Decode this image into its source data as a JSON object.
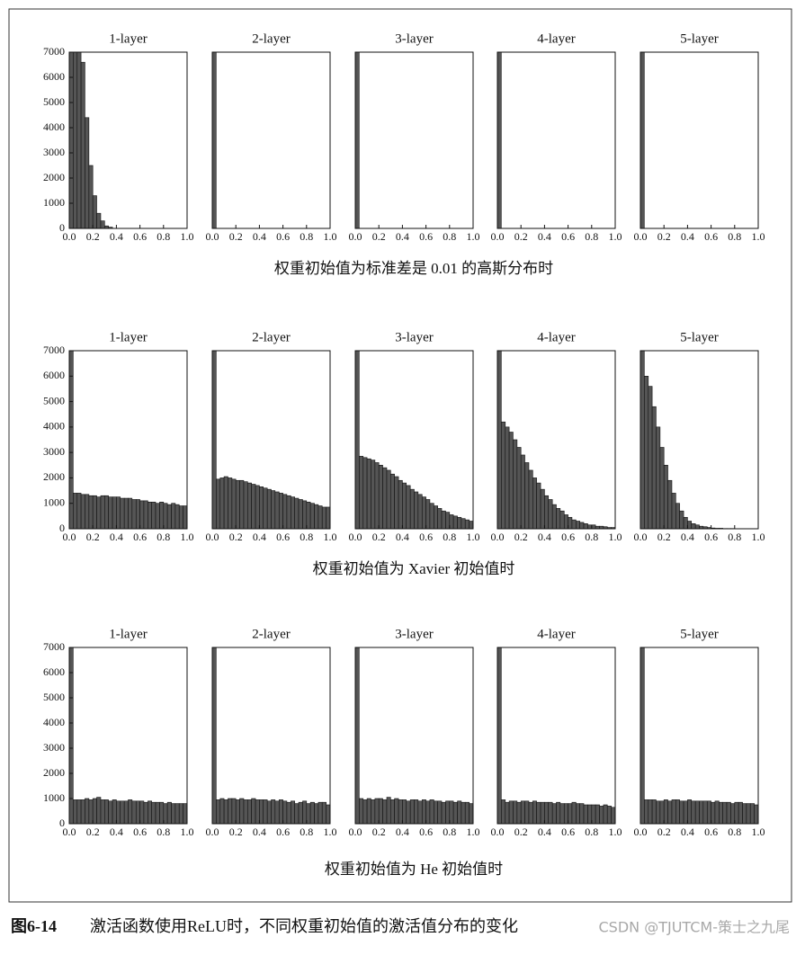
{
  "chart_data": [
    {
      "type": "histogram",
      "title": "1-layer",
      "bins": [
        0,
        0.033,
        0.067,
        0.1,
        0.133,
        0.167,
        0.2,
        0.233,
        0.267,
        0.3,
        0.333,
        0.367,
        0.4,
        0.433,
        0.467,
        0.5,
        0.533,
        0.567,
        0.6,
        0.633,
        0.667,
        0.7,
        0.733,
        0.767,
        0.8,
        0.833,
        0.867,
        0.9,
        0.933,
        0.967,
        1
      ],
      "values": [
        7000,
        7000,
        7000,
        6600,
        4400,
        2500,
        1300,
        600,
        300,
        100,
        50,
        0,
        0,
        0,
        0,
        0,
        0,
        0,
        0,
        0,
        0,
        0,
        0,
        0,
        0,
        0,
        0,
        0,
        0,
        0
      ],
      "color": "#555555",
      "xlim": [
        0,
        1
      ],
      "ylim": [
        0,
        7000
      ],
      "xticks": [
        {
          "value": 0,
          "label": "0.0"
        },
        0.2,
        0.4,
        0.6,
        0.8,
        {
          "value": 1,
          "label": "1.0"
        }
      ],
      "yticks": [
        0,
        1000,
        2000,
        3000,
        4000,
        5000,
        6000,
        7000
      ]
    },
    {
      "type": "histogram",
      "title": "2-layer",
      "bins": [
        0,
        0.033,
        0.067,
        0.1,
        0.133,
        0.167,
        0.2,
        0.233,
        0.267,
        0.3,
        0.333,
        0.367,
        0.4,
        0.433,
        0.467,
        0.5,
        0.533,
        0.567,
        0.6,
        0.633,
        0.667,
        0.7,
        0.733,
        0.767,
        0.8,
        0.833,
        0.867,
        0.9,
        0.933,
        0.967,
        1
      ],
      "values": [
        7000,
        0,
        0,
        0,
        0,
        0,
        0,
        0,
        0,
        0,
        0,
        0,
        0,
        0,
        0,
        0,
        0,
        0,
        0,
        0,
        0,
        0,
        0,
        0,
        0,
        0,
        0,
        0,
        0,
        0
      ],
      "color": "#555555",
      "xlim": [
        0,
        1
      ],
      "ylim": [
        0,
        7000
      ],
      "xticks": [
        {
          "value": 0,
          "label": "0.0"
        },
        0.2,
        0.4,
        0.6,
        0.8,
        {
          "value": 1,
          "label": "1.0"
        }
      ]
    },
    {
      "type": "histogram",
      "title": "3-layer",
      "bins": [
        0,
        0.033,
        0.067,
        0.1,
        0.133,
        0.167,
        0.2,
        0.233,
        0.267,
        0.3,
        0.333,
        0.367,
        0.4,
        0.433,
        0.467,
        0.5,
        0.533,
        0.567,
        0.6,
        0.633,
        0.667,
        0.7,
        0.733,
        0.767,
        0.8,
        0.833,
        0.867,
        0.9,
        0.933,
        0.967,
        1
      ],
      "values": [
        7000,
        0,
        0,
        0,
        0,
        0,
        0,
        0,
        0,
        0,
        0,
        0,
        0,
        0,
        0,
        0,
        0,
        0,
        0,
        0,
        0,
        0,
        0,
        0,
        0,
        0,
        0,
        0,
        0,
        0
      ],
      "color": "#555555",
      "xlim": [
        0,
        1
      ],
      "ylim": [
        0,
        7000
      ],
      "xticks": [
        {
          "value": 0,
          "label": "0.0"
        },
        0.2,
        0.4,
        0.6,
        0.8,
        {
          "value": 1,
          "label": "1.0"
        }
      ]
    },
    {
      "type": "histogram",
      "title": "4-layer",
      "bins": [
        0,
        0.033,
        0.067,
        0.1,
        0.133,
        0.167,
        0.2,
        0.233,
        0.267,
        0.3,
        0.333,
        0.367,
        0.4,
        0.433,
        0.467,
        0.5,
        0.533,
        0.567,
        0.6,
        0.633,
        0.667,
        0.7,
        0.733,
        0.767,
        0.8,
        0.833,
        0.867,
        0.9,
        0.933,
        0.967,
        1
      ],
      "values": [
        7000,
        0,
        0,
        0,
        0,
        0,
        0,
        0,
        0,
        0,
        0,
        0,
        0,
        0,
        0,
        0,
        0,
        0,
        0,
        0,
        0,
        0,
        0,
        0,
        0,
        0,
        0,
        0,
        0,
        0
      ],
      "color": "#555555",
      "xlim": [
        0,
        1
      ],
      "ylim": [
        0,
        7000
      ],
      "xticks": [
        {
          "value": 0,
          "label": "0.0"
        },
        0.2,
        0.4,
        0.6,
        0.8,
        {
          "value": 1,
          "label": "1.0"
        }
      ]
    },
    {
      "type": "histogram",
      "title": "5-layer",
      "bins": [
        0,
        0.033,
        0.067,
        0.1,
        0.133,
        0.167,
        0.2,
        0.233,
        0.267,
        0.3,
        0.333,
        0.367,
        0.4,
        0.433,
        0.467,
        0.5,
        0.533,
        0.567,
        0.6,
        0.633,
        0.667,
        0.7,
        0.733,
        0.767,
        0.8,
        0.833,
        0.867,
        0.9,
        0.933,
        0.967,
        1
      ],
      "values": [
        7000,
        0,
        0,
        0,
        0,
        0,
        0,
        0,
        0,
        0,
        0,
        0,
        0,
        0,
        0,
        0,
        0,
        0,
        0,
        0,
        0,
        0,
        0,
        0,
        0,
        0,
        0,
        0,
        0,
        0
      ],
      "color": "#555555",
      "xlim": [
        0,
        1
      ],
      "ylim": [
        0,
        7000
      ],
      "xticks": [
        {
          "value": 0,
          "label": "0.0"
        },
        0.2,
        0.4,
        0.6,
        0.8,
        {
          "value": 1,
          "label": "1.0"
        }
      ]
    },
    {
      "type": "histogram",
      "title": "1-layer",
      "bins": [
        0,
        0.033,
        0.067,
        0.1,
        0.133,
        0.167,
        0.2,
        0.233,
        0.267,
        0.3,
        0.333,
        0.367,
        0.4,
        0.433,
        0.467,
        0.5,
        0.533,
        0.567,
        0.6,
        0.633,
        0.667,
        0.7,
        0.733,
        0.767,
        0.8,
        0.833,
        0.867,
        0.9,
        0.933,
        0.967,
        1
      ],
      "values": [
        7000,
        1400,
        1400,
        1350,
        1350,
        1300,
        1300,
        1250,
        1300,
        1300,
        1250,
        1250,
        1250,
        1200,
        1200,
        1200,
        1150,
        1150,
        1100,
        1100,
        1050,
        1050,
        1000,
        1050,
        1000,
        950,
        1000,
        950,
        900,
        900
      ],
      "color": "#555555",
      "xlim": [
        0,
        1
      ],
      "ylim": [
        0,
        7000
      ],
      "xticks": [
        {
          "value": 0,
          "label": "0.0"
        },
        0.2,
        0.4,
        0.6,
        0.8,
        {
          "value": 1,
          "label": "1.0"
        }
      ],
      "yticks": [
        0,
        1000,
        2000,
        3000,
        4000,
        5000,
        6000,
        7000
      ]
    },
    {
      "type": "histogram",
      "title": "2-layer",
      "bins": [
        0,
        0.033,
        0.067,
        0.1,
        0.133,
        0.167,
        0.2,
        0.233,
        0.267,
        0.3,
        0.333,
        0.367,
        0.4,
        0.433,
        0.467,
        0.5,
        0.533,
        0.567,
        0.6,
        0.633,
        0.667,
        0.7,
        0.733,
        0.767,
        0.8,
        0.833,
        0.867,
        0.9,
        0.933,
        0.967,
        1
      ],
      "values": [
        7000,
        1950,
        2000,
        2050,
        2000,
        1950,
        1900,
        1900,
        1850,
        1800,
        1750,
        1700,
        1650,
        1600,
        1550,
        1500,
        1450,
        1400,
        1350,
        1300,
        1250,
        1200,
        1150,
        1100,
        1050,
        1000,
        950,
        900,
        850,
        850
      ],
      "color": "#555555",
      "xlim": [
        0,
        1
      ],
      "ylim": [
        0,
        7000
      ],
      "xticks": [
        {
          "value": 0,
          "label": "0.0"
        },
        0.2,
        0.4,
        0.6,
        0.8,
        {
          "value": 1,
          "label": "1.0"
        }
      ]
    },
    {
      "type": "histogram",
      "title": "3-layer",
      "bins": [
        0,
        0.033,
        0.067,
        0.1,
        0.133,
        0.167,
        0.2,
        0.233,
        0.267,
        0.3,
        0.333,
        0.367,
        0.4,
        0.433,
        0.467,
        0.5,
        0.533,
        0.567,
        0.6,
        0.633,
        0.667,
        0.7,
        0.733,
        0.767,
        0.8,
        0.833,
        0.867,
        0.9,
        0.933,
        0.967,
        1
      ],
      "values": [
        7000,
        2850,
        2800,
        2750,
        2700,
        2600,
        2500,
        2400,
        2300,
        2150,
        2050,
        1900,
        1800,
        1700,
        1550,
        1450,
        1350,
        1250,
        1150,
        1000,
        900,
        800,
        700,
        650,
        550,
        500,
        450,
        400,
        350,
        300
      ],
      "color": "#555555",
      "xlim": [
        0,
        1
      ],
      "ylim": [
        0,
        7000
      ],
      "xticks": [
        {
          "value": 0,
          "label": "0.0"
        },
        0.2,
        0.4,
        0.6,
        0.8,
        {
          "value": 1,
          "label": "1.0"
        }
      ]
    },
    {
      "type": "histogram",
      "title": "4-layer",
      "bins": [
        0,
        0.033,
        0.067,
        0.1,
        0.133,
        0.167,
        0.2,
        0.233,
        0.267,
        0.3,
        0.333,
        0.367,
        0.4,
        0.433,
        0.467,
        0.5,
        0.533,
        0.567,
        0.6,
        0.633,
        0.667,
        0.7,
        0.733,
        0.767,
        0.8,
        0.833,
        0.867,
        0.9,
        0.933,
        0.967,
        1
      ],
      "values": [
        7000,
        4200,
        4000,
        3800,
        3500,
        3200,
        2900,
        2600,
        2300,
        2000,
        1800,
        1550,
        1300,
        1150,
        950,
        800,
        700,
        550,
        450,
        350,
        300,
        250,
        200,
        150,
        150,
        100,
        100,
        80,
        50,
        50
      ],
      "color": "#555555",
      "xlim": [
        0,
        1
      ],
      "ylim": [
        0,
        7000
      ],
      "xticks": [
        {
          "value": 0,
          "label": "0.0"
        },
        0.2,
        0.4,
        0.6,
        0.8,
        {
          "value": 1,
          "label": "1.0"
        }
      ]
    },
    {
      "type": "histogram",
      "title": "5-layer",
      "bins": [
        0,
        0.033,
        0.067,
        0.1,
        0.133,
        0.167,
        0.2,
        0.233,
        0.267,
        0.3,
        0.333,
        0.367,
        0.4,
        0.433,
        0.467,
        0.5,
        0.533,
        0.567,
        0.6,
        0.633,
        0.667,
        0.7,
        0.733,
        0.767,
        0.8,
        0.833,
        0.867,
        0.9,
        0.933,
        0.967,
        1
      ],
      "values": [
        7000,
        6000,
        5600,
        4800,
        4000,
        3200,
        2500,
        1900,
        1400,
        1000,
        700,
        450,
        300,
        200,
        150,
        100,
        80,
        50,
        30,
        20,
        20,
        10,
        10,
        10,
        5,
        5,
        5,
        0,
        0,
        0
      ],
      "color": "#555555",
      "xlim": [
        0,
        1
      ],
      "ylim": [
        0,
        7000
      ],
      "xticks": [
        {
          "value": 0,
          "label": "0.0"
        },
        0.2,
        0.4,
        0.6,
        0.8,
        {
          "value": 1,
          "label": "1.0"
        }
      ]
    },
    {
      "type": "histogram",
      "title": "1-layer",
      "bins": [
        0,
        0.033,
        0.067,
        0.1,
        0.133,
        0.167,
        0.2,
        0.233,
        0.267,
        0.3,
        0.333,
        0.367,
        0.4,
        0.433,
        0.467,
        0.5,
        0.533,
        0.567,
        0.6,
        0.633,
        0.667,
        0.7,
        0.733,
        0.767,
        0.8,
        0.833,
        0.867,
        0.9,
        0.933,
        0.967,
        1
      ],
      "values": [
        7000,
        950,
        950,
        950,
        1000,
        950,
        1000,
        1050,
        950,
        950,
        900,
        950,
        900,
        900,
        900,
        950,
        900,
        900,
        900,
        850,
        900,
        850,
        850,
        850,
        800,
        850,
        800,
        800,
        800,
        800
      ],
      "color": "#555555",
      "xlim": [
        0,
        1
      ],
      "ylim": [
        0,
        7000
      ],
      "xticks": [
        {
          "value": 0,
          "label": "0.0"
        },
        0.2,
        0.4,
        0.6,
        0.8,
        {
          "value": 1,
          "label": "1.0"
        }
      ],
      "yticks": [
        0,
        1000,
        2000,
        3000,
        4000,
        5000,
        6000,
        7000
      ]
    },
    {
      "type": "histogram",
      "title": "2-layer",
      "bins": [
        0,
        0.033,
        0.067,
        0.1,
        0.133,
        0.167,
        0.2,
        0.233,
        0.267,
        0.3,
        0.333,
        0.367,
        0.4,
        0.433,
        0.467,
        0.5,
        0.533,
        0.567,
        0.6,
        0.633,
        0.667,
        0.7,
        0.733,
        0.767,
        0.8,
        0.833,
        0.867,
        0.9,
        0.933,
        0.967,
        1
      ],
      "values": [
        7000,
        950,
        1000,
        950,
        1000,
        1000,
        950,
        1000,
        950,
        950,
        1000,
        950,
        950,
        950,
        900,
        950,
        900,
        950,
        900,
        850,
        900,
        800,
        850,
        900,
        800,
        850,
        800,
        850,
        850,
        750
      ],
      "color": "#555555",
      "xlim": [
        0,
        1
      ],
      "ylim": [
        0,
        7000
      ],
      "xticks": [
        {
          "value": 0,
          "label": "0.0"
        },
        0.2,
        0.4,
        0.6,
        0.8,
        {
          "value": 1,
          "label": "1.0"
        }
      ]
    },
    {
      "type": "histogram",
      "title": "3-layer",
      "bins": [
        0,
        0.033,
        0.067,
        0.1,
        0.133,
        0.167,
        0.2,
        0.233,
        0.267,
        0.3,
        0.333,
        0.367,
        0.4,
        0.433,
        0.467,
        0.5,
        0.533,
        0.567,
        0.6,
        0.633,
        0.667,
        0.7,
        0.733,
        0.767,
        0.8,
        0.833,
        0.867,
        0.9,
        0.933,
        0.967,
        1
      ],
      "values": [
        7000,
        1000,
        950,
        1000,
        950,
        1000,
        1000,
        950,
        1050,
        950,
        1000,
        950,
        950,
        900,
        950,
        950,
        900,
        950,
        900,
        950,
        900,
        900,
        850,
        900,
        900,
        850,
        900,
        850,
        850,
        800
      ],
      "color": "#555555",
      "xlim": [
        0,
        1
      ],
      "ylim": [
        0,
        7000
      ],
      "xticks": [
        {
          "value": 0,
          "label": "0.0"
        },
        0.2,
        0.4,
        0.6,
        0.8,
        {
          "value": 1,
          "label": "1.0"
        }
      ]
    },
    {
      "type": "histogram",
      "title": "4-layer",
      "bins": [
        0,
        0.033,
        0.067,
        0.1,
        0.133,
        0.167,
        0.2,
        0.233,
        0.267,
        0.3,
        0.333,
        0.367,
        0.4,
        0.433,
        0.467,
        0.5,
        0.533,
        0.567,
        0.6,
        0.633,
        0.667,
        0.7,
        0.733,
        0.767,
        0.8,
        0.833,
        0.867,
        0.9,
        0.933,
        0.967,
        1
      ],
      "values": [
        7000,
        950,
        850,
        900,
        900,
        850,
        900,
        900,
        850,
        900,
        850,
        850,
        850,
        850,
        800,
        850,
        800,
        800,
        800,
        850,
        800,
        800,
        750,
        750,
        750,
        750,
        700,
        750,
        700,
        650
      ],
      "color": "#555555",
      "xlim": [
        0,
        1
      ],
      "ylim": [
        0,
        7000
      ],
      "xticks": [
        {
          "value": 0,
          "label": "0.0"
        },
        0.2,
        0.4,
        0.6,
        0.8,
        {
          "value": 1,
          "label": "1.0"
        }
      ]
    },
    {
      "type": "histogram",
      "title": "5-layer",
      "bins": [
        0,
        0.033,
        0.067,
        0.1,
        0.133,
        0.167,
        0.2,
        0.233,
        0.267,
        0.3,
        0.333,
        0.367,
        0.4,
        0.433,
        0.467,
        0.5,
        0.533,
        0.567,
        0.6,
        0.633,
        0.667,
        0.7,
        0.733,
        0.767,
        0.8,
        0.833,
        0.867,
        0.9,
        0.933,
        0.967,
        1
      ],
      "values": [
        7000,
        950,
        950,
        950,
        900,
        900,
        950,
        900,
        950,
        950,
        900,
        900,
        950,
        900,
        900,
        900,
        900,
        900,
        850,
        900,
        850,
        850,
        850,
        800,
        850,
        850,
        800,
        800,
        800,
        750
      ],
      "color": "#555555",
      "xlim": [
        0,
        1
      ],
      "ylim": [
        0,
        7000
      ],
      "xticks": [
        {
          "value": 0,
          "label": "0.0"
        },
        0.2,
        0.4,
        0.6,
        0.8,
        {
          "value": 1,
          "label": "1.0"
        }
      ]
    }
  ],
  "row_captions": [
    "权重初始值为标准差是 0.01 的高斯分布时",
    "权重初始值为 Xavier 初始值时",
    "权重初始值为 He 初始值时"
  ],
  "figure_label": "图6-14",
  "caption": "激活函数使用ReLU时，不同权重初始值的激活值分布的变化",
  "watermark": "CSDN @TJUTCM-策士之九尾"
}
